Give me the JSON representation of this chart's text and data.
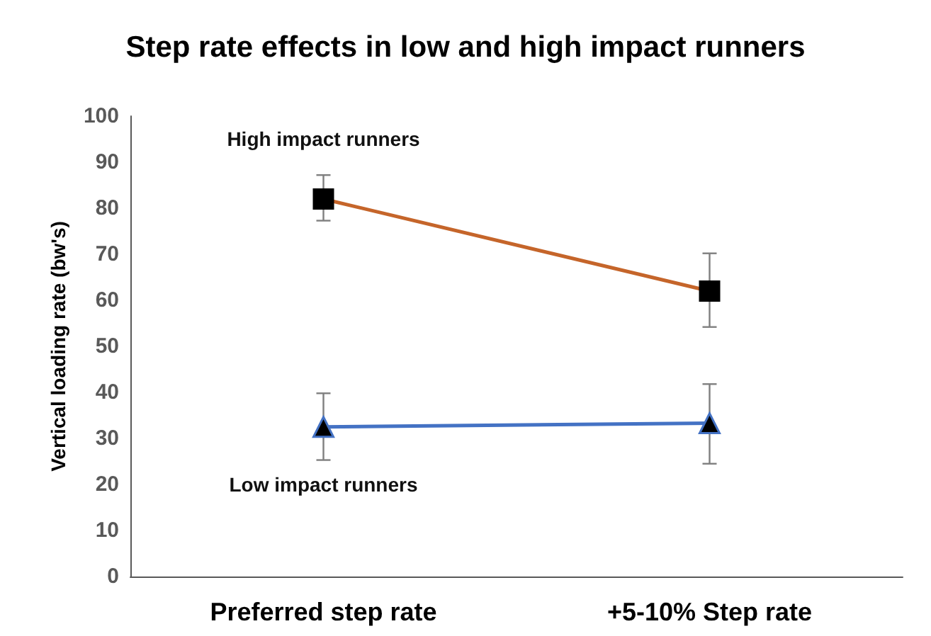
{
  "chart_data": {
    "type": "line",
    "title": "Step rate effects in low and high impact runners",
    "ylabel": "Vertical loading rate (bw's)",
    "categories": [
      "Preferred step rate",
      "+5-10% Step rate"
    ],
    "series": [
      {
        "name": "High impact runners",
        "color": "#c5652a",
        "marker": "square",
        "values": [
          82,
          62
        ],
        "errors": [
          [
            77.3,
            87.2
          ],
          [
            54.2,
            70.2
          ]
        ]
      },
      {
        "name": "Low impact runners",
        "color": "#4472c4",
        "marker": "triangle",
        "values": [
          32.5,
          33.3
        ],
        "errors": [
          [
            25.3,
            39.8
          ],
          [
            24.5,
            41.8
          ]
        ]
      }
    ],
    "ylim": [
      0,
      100
    ],
    "yticks": [
      0,
      10,
      20,
      30,
      40,
      50,
      60,
      70,
      80,
      90,
      100
    ],
    "grid": false,
    "legend": false
  }
}
